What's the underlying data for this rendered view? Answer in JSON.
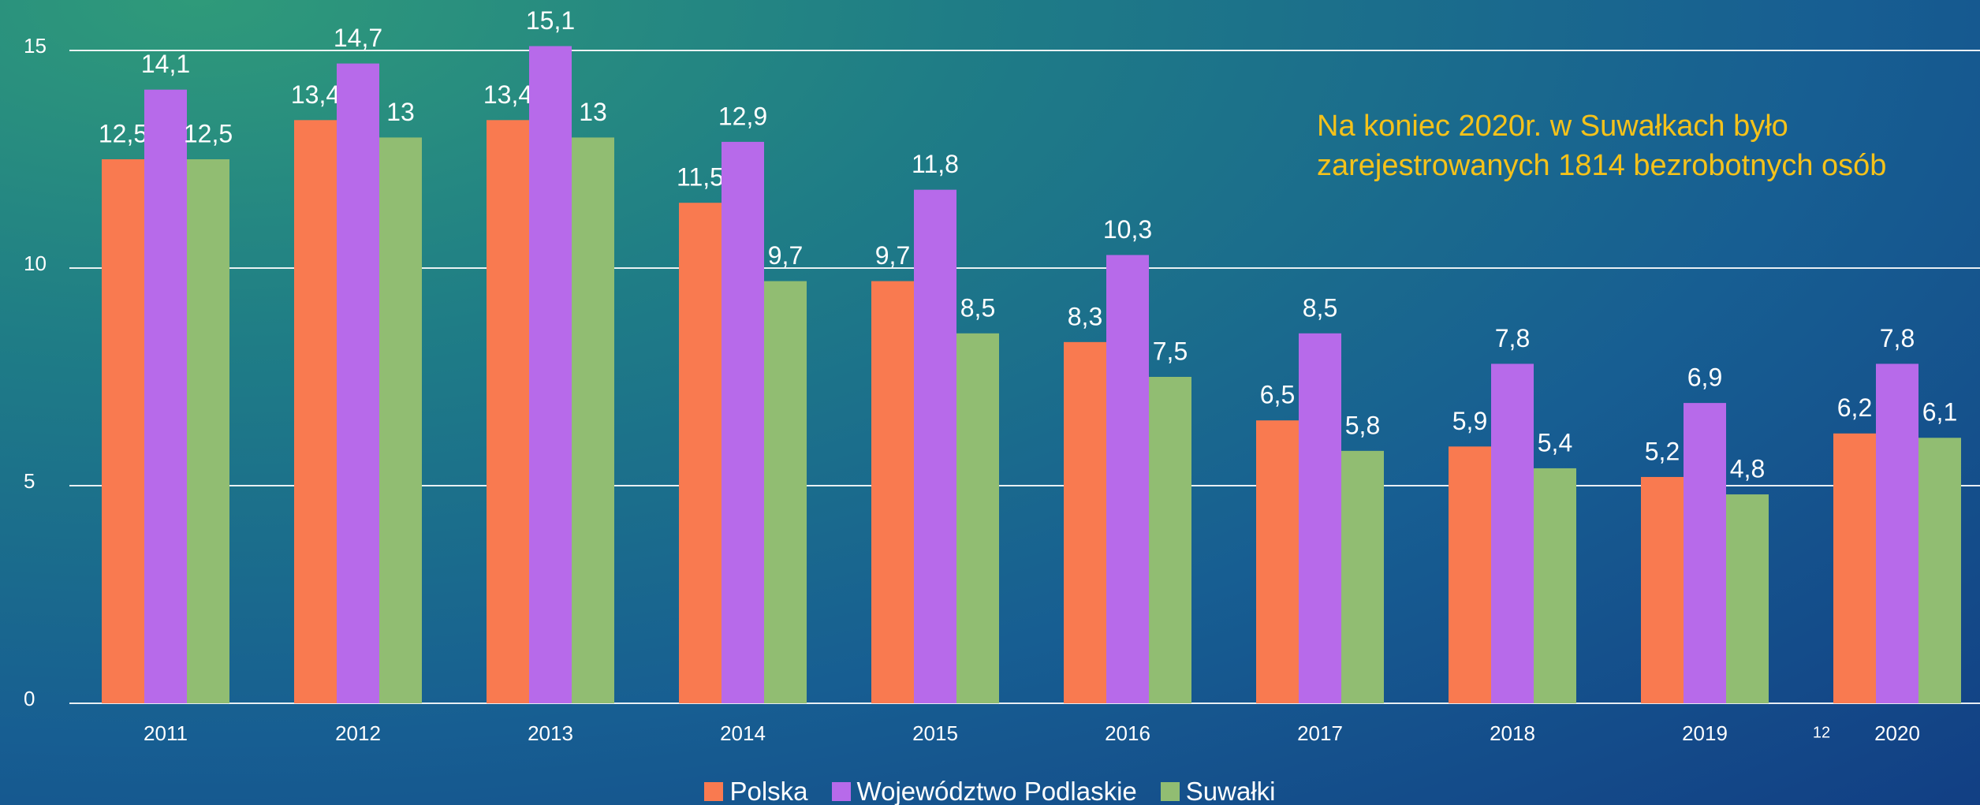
{
  "chart_data": {
    "type": "bar",
    "categories": [
      "2011",
      "2012",
      "2013",
      "2014",
      "2015",
      "2016",
      "2017",
      "2018",
      "2019",
      "2020"
    ],
    "series": [
      {
        "name": "Polska",
        "color": "#f97a50",
        "values": [
          12.5,
          13.4,
          13.4,
          11.5,
          9.7,
          8.3,
          6.5,
          5.9,
          5.2,
          6.2
        ],
        "value_labels": [
          "12,5",
          "13,4",
          "13,4",
          "11,5",
          "9,7",
          "8,3",
          "6,5",
          "5,9",
          "5,2",
          "6,2"
        ]
      },
      {
        "name": "Województwo Podlaskie",
        "color": "#b76aea",
        "values": [
          14.1,
          14.7,
          15.1,
          12.9,
          11.8,
          10.3,
          8.5,
          7.8,
          6.9,
          7.8
        ],
        "value_labels": [
          "14,1",
          "14,7",
          "15,1",
          "12,9",
          "11,8",
          "10,3",
          "8,5",
          "7,8",
          "6,9",
          "7,8"
        ]
      },
      {
        "name": "Suwałki",
        "color": "#91bd72",
        "values": [
          12.5,
          13,
          13,
          9.7,
          8.5,
          7.5,
          5.8,
          5.4,
          4.8,
          6.1
        ],
        "value_labels": [
          "12,5",
          "13",
          "13",
          "9,7",
          "8,5",
          "7,5",
          "5,8",
          "5,4",
          "4,8",
          "6,1"
        ]
      }
    ],
    "ylim": [
      0,
      16
    ],
    "yticks": [
      0,
      5,
      10,
      15
    ],
    "grid": true,
    "legend": "bottom",
    "annotation": [
      "Na koniec 2020r. w Suwałkach było",
      "zarejestrowanych 1814 bezrobotnych osób"
    ],
    "page_number": "12"
  }
}
